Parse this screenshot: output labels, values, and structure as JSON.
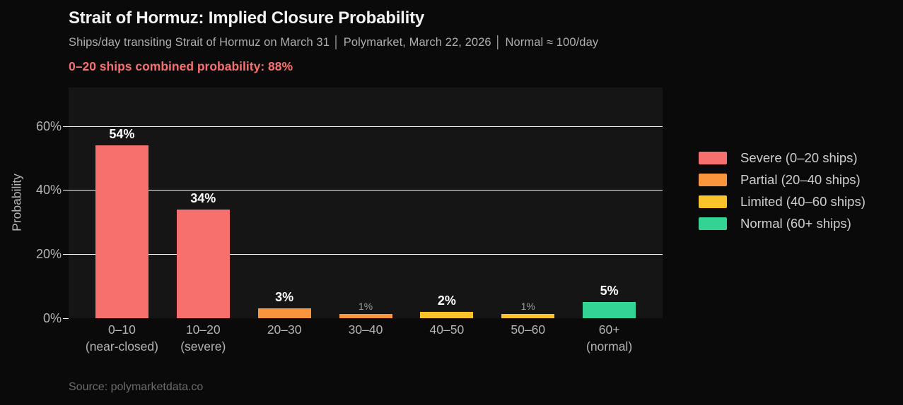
{
  "header": {
    "title": "Strait of Hormuz: Implied Closure Probability",
    "subtitle": "Ships/day transiting Strait of Hormuz on March 31 │ Polymarket, March 22, 2026 │ Normal ≈ 100/day",
    "highlight": "0–20 ships combined probability: 88%"
  },
  "chart_data": {
    "type": "bar",
    "title": "Strait of Hormuz: Implied Closure Probability",
    "xlabel": "",
    "ylabel": "Probability",
    "ylim": [
      0,
      72
    ],
    "grid": true,
    "legend_position": "right",
    "yticks": [
      {
        "value": 0,
        "label": "0%"
      },
      {
        "value": 20,
        "label": "20%"
      },
      {
        "value": 40,
        "label": "40%"
      },
      {
        "value": 60,
        "label": "60%"
      }
    ],
    "groups": {
      "severe": {
        "label": "Severe (0–20 ships)",
        "color": "#f7706e"
      },
      "partial": {
        "label": "Partial (20–40 ships)",
        "color": "#f9953c"
      },
      "limited": {
        "label": "Limited (40–60 ships)",
        "color": "#fbc32a"
      },
      "normal": {
        "label": "Normal (60+ ships)",
        "color": "#32d393"
      }
    },
    "legend_order": [
      "severe",
      "partial",
      "limited",
      "normal"
    ],
    "bars": [
      {
        "category": "0–10",
        "category_sub": "(near-closed)",
        "value": 54,
        "value_label": "54%",
        "label_style": "strong",
        "group": "severe"
      },
      {
        "category": "10–20",
        "category_sub": "(severe)",
        "value": 34,
        "value_label": "34%",
        "label_style": "strong",
        "group": "severe"
      },
      {
        "category": "20–30",
        "category_sub": "",
        "value": 3,
        "value_label": "3%",
        "label_style": "strong",
        "group": "partial"
      },
      {
        "category": "30–40",
        "category_sub": "",
        "value": 1,
        "value_label": "1%",
        "label_style": "muted",
        "group": "partial"
      },
      {
        "category": "40–50",
        "category_sub": "",
        "value": 2,
        "value_label": "2%",
        "label_style": "strong",
        "group": "limited"
      },
      {
        "category": "50–60",
        "category_sub": "",
        "value": 1,
        "value_label": "1%",
        "label_style": "muted",
        "group": "limited"
      },
      {
        "category": "60+",
        "category_sub": "(normal)",
        "value": 5,
        "value_label": "5%",
        "label_style": "strong",
        "group": "normal"
      }
    ]
  },
  "footer": {
    "source": "Source: polymarketdata.co"
  },
  "colors": {
    "page_bg": "#0a0a0a",
    "plot_bg": "#151515",
    "grid": "#ffffff",
    "severe": "#f7706e",
    "partial": "#f9953c",
    "limited": "#fbc32a",
    "normal": "#32d393"
  }
}
